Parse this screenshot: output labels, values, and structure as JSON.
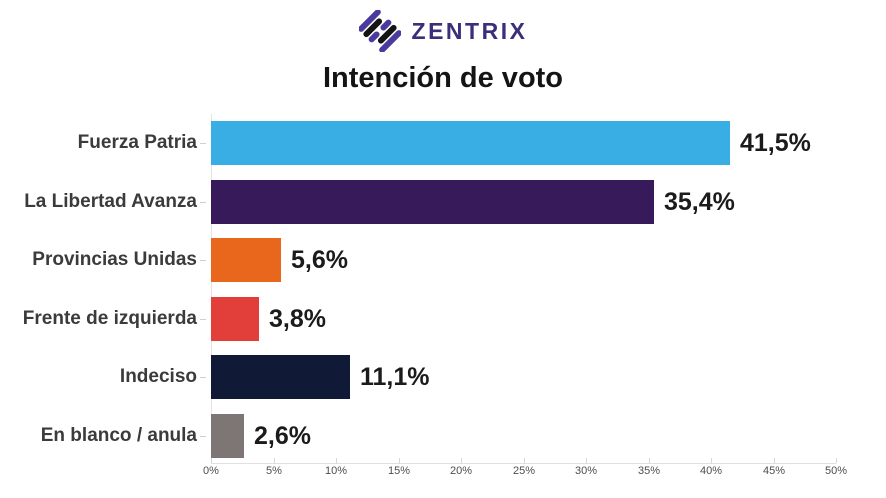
{
  "logo": {
    "text": "ZENTRIX",
    "icon": "zentrix-diamond-icon",
    "text_color": "#3D2E7C",
    "icon_purple": "#4B3A9E",
    "icon_black": "#141414"
  },
  "title": "Intención de voto",
  "chart_data": {
    "type": "bar",
    "orientation": "horizontal",
    "title": "Intención de voto",
    "categories": [
      "Fuerza Patria",
      "La Libertad Avanza",
      "Provincias Unidas",
      "Frente de izquierda",
      "Indeciso",
      "En blanco / anula"
    ],
    "values": [
      41.5,
      35.4,
      5.6,
      3.8,
      11.1,
      2.6
    ],
    "value_labels": [
      "41,5%",
      "35,4%",
      "5,6%",
      "3,8%",
      "11,1%",
      "2,6%"
    ],
    "bar_colors": [
      "#38AEE5",
      "#371A59",
      "#E8671C",
      "#E23F3B",
      "#101A36",
      "#7D7674"
    ],
    "xlim": [
      0,
      50
    ],
    "x_ticks": [
      0,
      5,
      10,
      15,
      20,
      25,
      30,
      35,
      40,
      45,
      50
    ],
    "x_tick_labels": [
      "0%",
      "5%",
      "10%",
      "15%",
      "20%",
      "25%",
      "30%",
      "35%",
      "40%",
      "45%",
      "50%"
    ],
    "xlabel": "",
    "ylabel": "",
    "grid": false,
    "legend": false
  }
}
